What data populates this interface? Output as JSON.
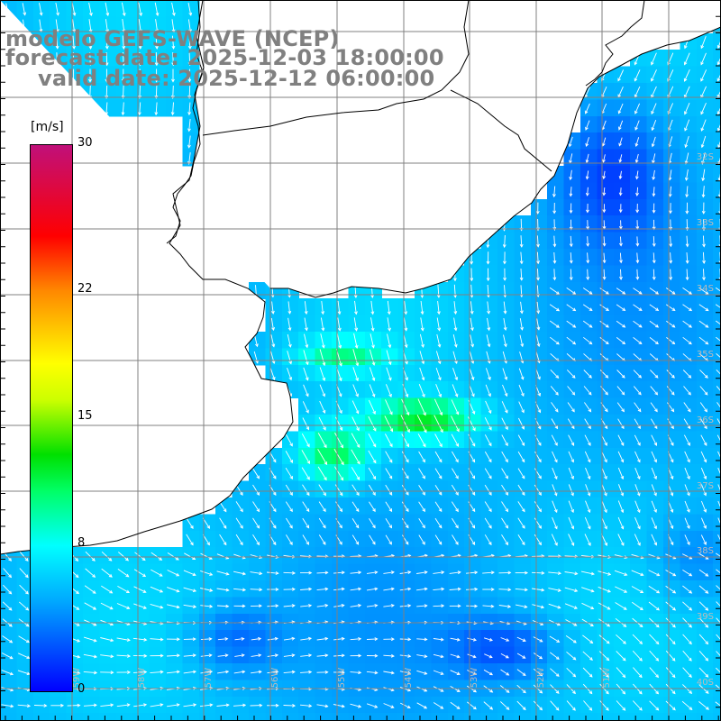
{
  "header": {
    "title_model": "modelo GEFS-WAVE (NCEP)",
    "forecast_date": "forecast date: 2025-12-03 18:00:00",
    "valid_date": "valid date: 2025-12-12 06:00:00"
  },
  "colorbar": {
    "unit": "[m/s]",
    "ticks": [
      "30",
      "22",
      "15",
      "8",
      "0"
    ],
    "tick_values": [
      30,
      22,
      15,
      8,
      0
    ],
    "range": [
      0,
      30
    ],
    "stops": [
      {
        "v": 0,
        "color": "#0000ff"
      },
      {
        "v": 5,
        "color": "#00aaff"
      },
      {
        "v": 8,
        "color": "#00ffff"
      },
      {
        "v": 11,
        "color": "#00ff66"
      },
      {
        "v": 13,
        "color": "#00e000"
      },
      {
        "v": 16,
        "color": "#ccff00"
      },
      {
        "v": 18,
        "color": "#ffff00"
      },
      {
        "v": 22,
        "color": "#ff8800"
      },
      {
        "v": 25,
        "color": "#ff0000"
      },
      {
        "v": 30,
        "color": "#c0107a"
      }
    ]
  },
  "grid": {
    "lat_labels": [
      "32S",
      "33S",
      "34S",
      "35S",
      "36S",
      "37S",
      "38S",
      "39S",
      "40S"
    ],
    "lon_labels": [
      "59W",
      "58W",
      "57W",
      "56W",
      "55W",
      "54W",
      "53W",
      "52W",
      "51W"
    ]
  },
  "colors": {
    "grid_line": "#808080",
    "coast_line": "#000000",
    "arrow": "#ffffff",
    "title_text": "#808080"
  }
}
